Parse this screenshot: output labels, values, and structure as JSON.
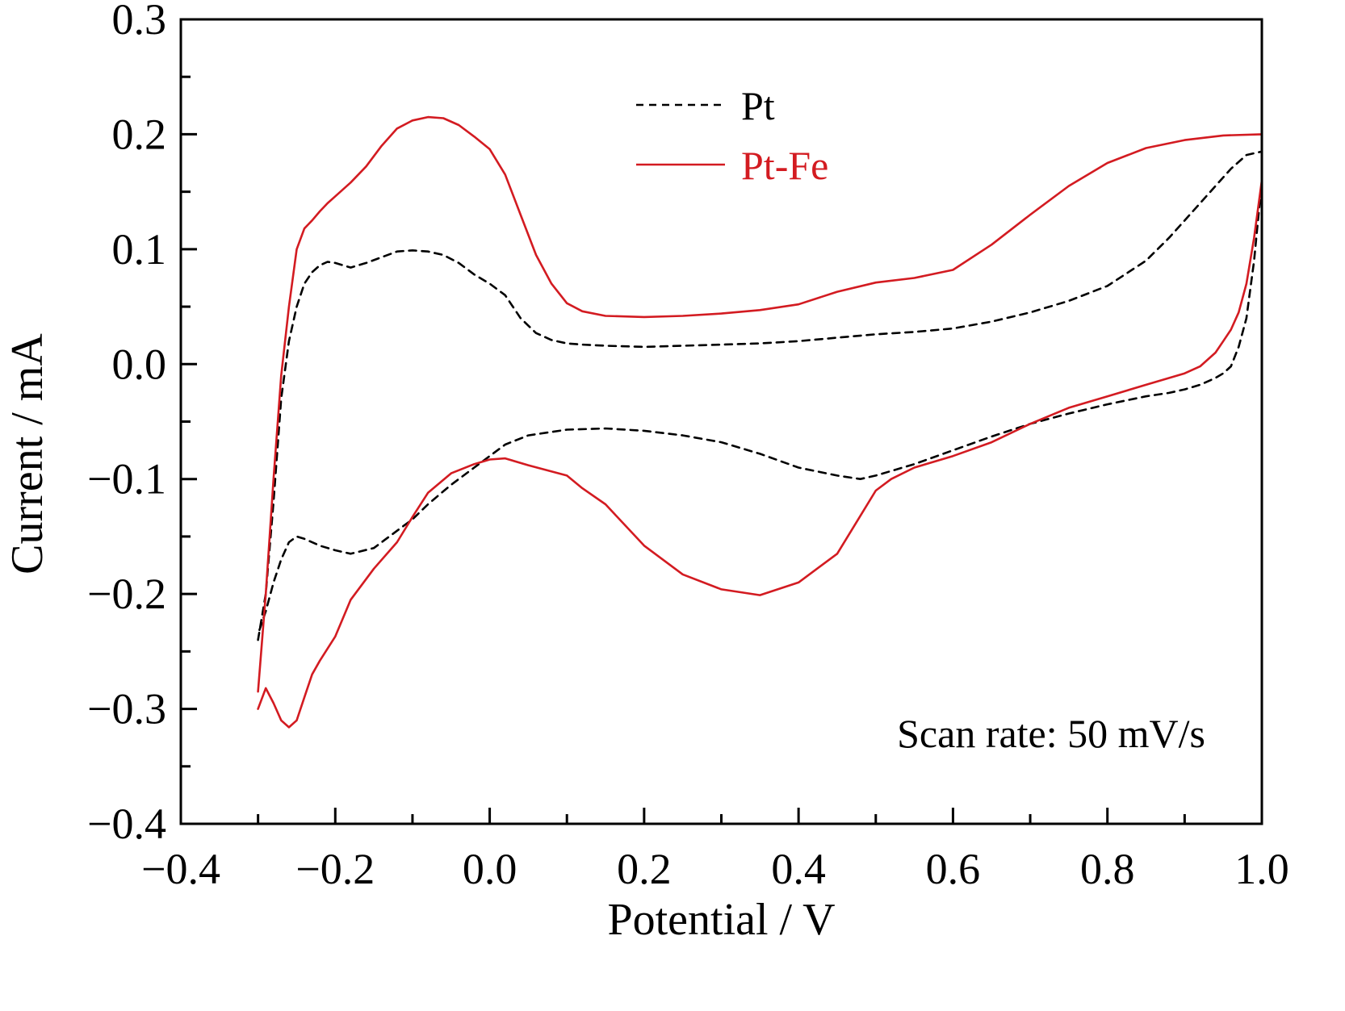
{
  "chart_data": {
    "type": "line",
    "xlabel": "Potential / V",
    "ylabel": "Current / mA",
    "xlim": [
      -0.4,
      1.0
    ],
    "ylim": [
      -0.4,
      0.3
    ],
    "x_ticks": [
      "−0.4",
      "−0.2",
      "0.0",
      "0.2",
      "0.4",
      "0.6",
      "0.8",
      "1.0"
    ],
    "y_ticks": [
      "0.3",
      "0.2",
      "0.1",
      "0.0",
      "−0.1",
      "−0.2",
      "−0.3",
      "−0.4"
    ],
    "annotation": "Scan rate: 50 mV/s",
    "legend_position": "top-center",
    "grid": false,
    "series": [
      {
        "name": "Pt",
        "color": "#000000",
        "style": "dashed",
        "x": [
          -0.3,
          -0.29,
          -0.28,
          -0.27,
          -0.26,
          -0.25,
          -0.24,
          -0.23,
          -0.22,
          -0.21,
          -0.2,
          -0.18,
          -0.16,
          -0.14,
          -0.12,
          -0.1,
          -0.08,
          -0.06,
          -0.04,
          -0.02,
          0.0,
          0.02,
          0.04,
          0.06,
          0.08,
          0.1,
          0.12,
          0.15,
          0.2,
          0.25,
          0.3,
          0.35,
          0.4,
          0.45,
          0.5,
          0.55,
          0.6,
          0.65,
          0.7,
          0.75,
          0.8,
          0.85,
          0.88,
          0.9,
          0.92,
          0.94,
          0.96,
          0.98,
          1.0,
          1.0,
          0.99,
          0.98,
          0.97,
          0.96,
          0.95,
          0.94,
          0.92,
          0.9,
          0.88,
          0.85,
          0.8,
          0.75,
          0.7,
          0.65,
          0.6,
          0.55,
          0.5,
          0.48,
          0.45,
          0.4,
          0.35,
          0.3,
          0.25,
          0.2,
          0.15,
          0.1,
          0.05,
          0.02,
          0.0,
          -0.02,
          -0.05,
          -0.08,
          -0.1,
          -0.12,
          -0.15,
          -0.18,
          -0.2,
          -0.22,
          -0.24,
          -0.25,
          -0.26,
          -0.27,
          -0.28,
          -0.29,
          -0.3
        ],
        "y": [
          -0.24,
          -0.2,
          -0.12,
          -0.03,
          0.02,
          0.05,
          0.07,
          0.08,
          0.086,
          0.089,
          0.088,
          0.084,
          0.088,
          0.093,
          0.098,
          0.099,
          0.098,
          0.095,
          0.088,
          0.078,
          0.07,
          0.06,
          0.04,
          0.027,
          0.021,
          0.018,
          0.017,
          0.016,
          0.015,
          0.016,
          0.017,
          0.018,
          0.02,
          0.023,
          0.026,
          0.028,
          0.031,
          0.037,
          0.045,
          0.055,
          0.068,
          0.09,
          0.11,
          0.125,
          0.14,
          0.155,
          0.17,
          0.182,
          0.185,
          0.16,
          0.09,
          0.04,
          0.015,
          -0.002,
          -0.008,
          -0.012,
          -0.018,
          -0.022,
          -0.025,
          -0.028,
          -0.035,
          -0.043,
          -0.052,
          -0.063,
          -0.075,
          -0.087,
          -0.097,
          -0.1,
          -0.097,
          -0.09,
          -0.078,
          -0.068,
          -0.062,
          -0.058,
          -0.056,
          -0.057,
          -0.062,
          -0.07,
          -0.08,
          -0.09,
          -0.105,
          -0.122,
          -0.135,
          -0.145,
          -0.16,
          -0.165,
          -0.162,
          -0.158,
          -0.152,
          -0.15,
          -0.155,
          -0.17,
          -0.19,
          -0.215,
          -0.235
        ]
      },
      {
        "name": "Pt-Fe",
        "color": "#d31b21",
        "style": "solid",
        "x": [
          -0.3,
          -0.29,
          -0.28,
          -0.27,
          -0.26,
          -0.25,
          -0.24,
          -0.23,
          -0.22,
          -0.21,
          -0.2,
          -0.18,
          -0.16,
          -0.14,
          -0.12,
          -0.1,
          -0.08,
          -0.06,
          -0.04,
          -0.02,
          0.0,
          0.02,
          0.04,
          0.06,
          0.08,
          0.1,
          0.12,
          0.15,
          0.2,
          0.25,
          0.3,
          0.35,
          0.4,
          0.45,
          0.5,
          0.55,
          0.6,
          0.65,
          0.7,
          0.75,
          0.8,
          0.85,
          0.9,
          0.95,
          1.0,
          1.0,
          0.99,
          0.98,
          0.97,
          0.96,
          0.95,
          0.94,
          0.92,
          0.9,
          0.85,
          0.8,
          0.75,
          0.7,
          0.65,
          0.6,
          0.55,
          0.52,
          0.5,
          0.48,
          0.45,
          0.4,
          0.35,
          0.3,
          0.25,
          0.2,
          0.15,
          0.12,
          0.1,
          0.05,
          0.02,
          0.0,
          -0.02,
          -0.05,
          -0.08,
          -0.1,
          -0.12,
          -0.15,
          -0.18,
          -0.2,
          -0.22,
          -0.23,
          -0.24,
          -0.25,
          -0.26,
          -0.27,
          -0.28,
          -0.29,
          -0.3
        ],
        "y": [
          -0.285,
          -0.2,
          -0.1,
          -0.01,
          0.05,
          0.1,
          0.118,
          0.125,
          0.133,
          0.14,
          0.146,
          0.158,
          0.172,
          0.19,
          0.205,
          0.212,
          0.215,
          0.214,
          0.208,
          0.198,
          0.187,
          0.165,
          0.13,
          0.095,
          0.07,
          0.053,
          0.046,
          0.042,
          0.041,
          0.042,
          0.044,
          0.047,
          0.052,
          0.063,
          0.071,
          0.075,
          0.082,
          0.104,
          0.13,
          0.155,
          0.175,
          0.188,
          0.195,
          0.199,
          0.2,
          0.16,
          0.11,
          0.07,
          0.045,
          0.03,
          0.02,
          0.01,
          -0.002,
          -0.008,
          -0.018,
          -0.028,
          -0.038,
          -0.052,
          -0.068,
          -0.08,
          -0.09,
          -0.1,
          -0.11,
          -0.132,
          -0.165,
          -0.19,
          -0.201,
          -0.196,
          -0.183,
          -0.158,
          -0.122,
          -0.108,
          -0.097,
          -0.088,
          -0.082,
          -0.083,
          -0.087,
          -0.095,
          -0.112,
          -0.133,
          -0.155,
          -0.178,
          -0.205,
          -0.237,
          -0.258,
          -0.27,
          -0.29,
          -0.31,
          -0.316,
          -0.31,
          -0.295,
          -0.282,
          -0.3
        ]
      }
    ]
  }
}
